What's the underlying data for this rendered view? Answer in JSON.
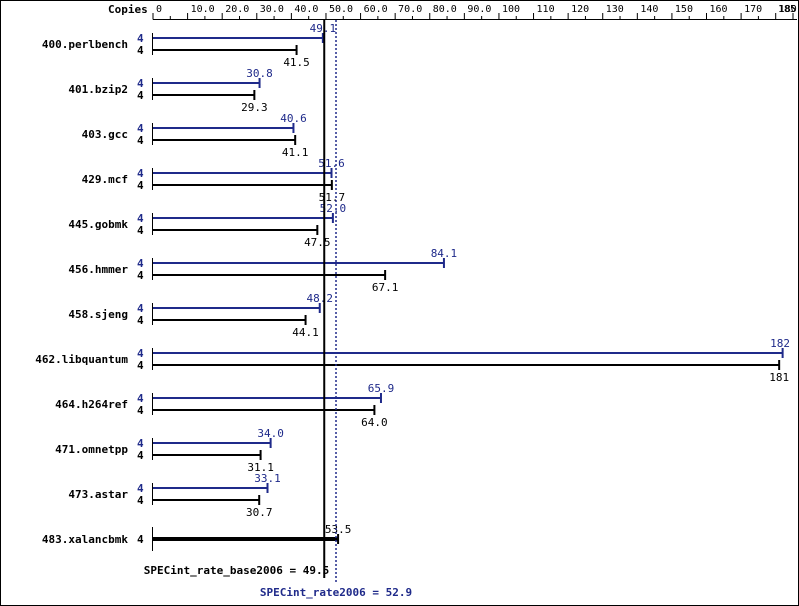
{
  "chart_data": {
    "type": "bar",
    "orientation": "horizontal",
    "copies_label": "Copies",
    "xlim": [
      0,
      185
    ],
    "ticks": [
      {
        "value": 0,
        "label": "0"
      },
      {
        "value": 10,
        "label": "10.0"
      },
      {
        "value": 20,
        "label": "20.0"
      },
      {
        "value": 30,
        "label": "30.0"
      },
      {
        "value": 40,
        "label": "40.0"
      },
      {
        "value": 50,
        "label": "50.0"
      },
      {
        "value": 60,
        "label": "60.0"
      },
      {
        "value": 70,
        "label": "70.0"
      },
      {
        "value": 80,
        "label": "80.0"
      },
      {
        "value": 90,
        "label": "90.0"
      },
      {
        "value": 100,
        "label": "100"
      },
      {
        "value": 110,
        "label": "110"
      },
      {
        "value": 120,
        "label": "120"
      },
      {
        "value": 130,
        "label": "130"
      },
      {
        "value": 140,
        "label": "140"
      },
      {
        "value": 150,
        "label": "150"
      },
      {
        "value": 160,
        "label": "160"
      },
      {
        "value": 170,
        "label": "170"
      },
      {
        "value": 180,
        "label": "180"
      },
      {
        "value": 185,
        "label": "185"
      }
    ],
    "colors": {
      "peak": "#1f2a8a",
      "base": "#000000"
    },
    "benchmarks": [
      {
        "name": "400.perlbench",
        "peak": {
          "copies": "4",
          "value": 49.1,
          "label": "49.1"
        },
        "base": {
          "copies": "4",
          "value": 41.5,
          "label": "41.5"
        }
      },
      {
        "name": "401.bzip2",
        "peak": {
          "copies": "4",
          "value": 30.8,
          "label": "30.8"
        },
        "base": {
          "copies": "4",
          "value": 29.3,
          "label": "29.3"
        }
      },
      {
        "name": "403.gcc",
        "peak": {
          "copies": "4",
          "value": 40.6,
          "label": "40.6"
        },
        "base": {
          "copies": "4",
          "value": 41.1,
          "label": "41.1"
        }
      },
      {
        "name": "429.mcf",
        "peak": {
          "copies": "4",
          "value": 51.6,
          "label": "51.6"
        },
        "base": {
          "copies": "4",
          "value": 51.7,
          "label": "51.7"
        }
      },
      {
        "name": "445.gobmk",
        "peak": {
          "copies": "4",
          "value": 52.0,
          "label": "52.0"
        },
        "base": {
          "copies": "4",
          "value": 47.5,
          "label": "47.5"
        }
      },
      {
        "name": "456.hmmer",
        "peak": {
          "copies": "4",
          "value": 84.1,
          "label": "84.1"
        },
        "base": {
          "copies": "4",
          "value": 67.1,
          "label": "67.1"
        }
      },
      {
        "name": "458.sjeng",
        "peak": {
          "copies": "4",
          "value": 48.2,
          "label": "48.2"
        },
        "base": {
          "copies": "4",
          "value": 44.1,
          "label": "44.1"
        }
      },
      {
        "name": "462.libquantum",
        "peak": {
          "copies": "4",
          "value": 182,
          "label": "182"
        },
        "base": {
          "copies": "4",
          "value": 181,
          "label": "181"
        }
      },
      {
        "name": "464.h264ref",
        "peak": {
          "copies": "4",
          "value": 65.9,
          "label": "65.9"
        },
        "base": {
          "copies": "4",
          "value": 64.0,
          "label": "64.0"
        }
      },
      {
        "name": "471.omnetpp",
        "peak": {
          "copies": "4",
          "value": 34.0,
          "label": "34.0"
        },
        "base": {
          "copies": "4",
          "value": 31.1,
          "label": "31.1"
        }
      },
      {
        "name": "473.astar",
        "peak": {
          "copies": "4",
          "value": 33.1,
          "label": "33.1"
        },
        "base": {
          "copies": "4",
          "value": 30.7,
          "label": "30.7"
        }
      },
      {
        "name": "483.xalancbmk",
        "combined": {
          "copies": "4",
          "value": 53.5,
          "label": "53.5"
        }
      }
    ],
    "summary": {
      "base": {
        "label": "SPECint_rate_base2006 = 49.5",
        "value": 49.5
      },
      "peak": {
        "label": "SPECint_rate2006 = 52.9",
        "value": 52.9
      }
    }
  }
}
